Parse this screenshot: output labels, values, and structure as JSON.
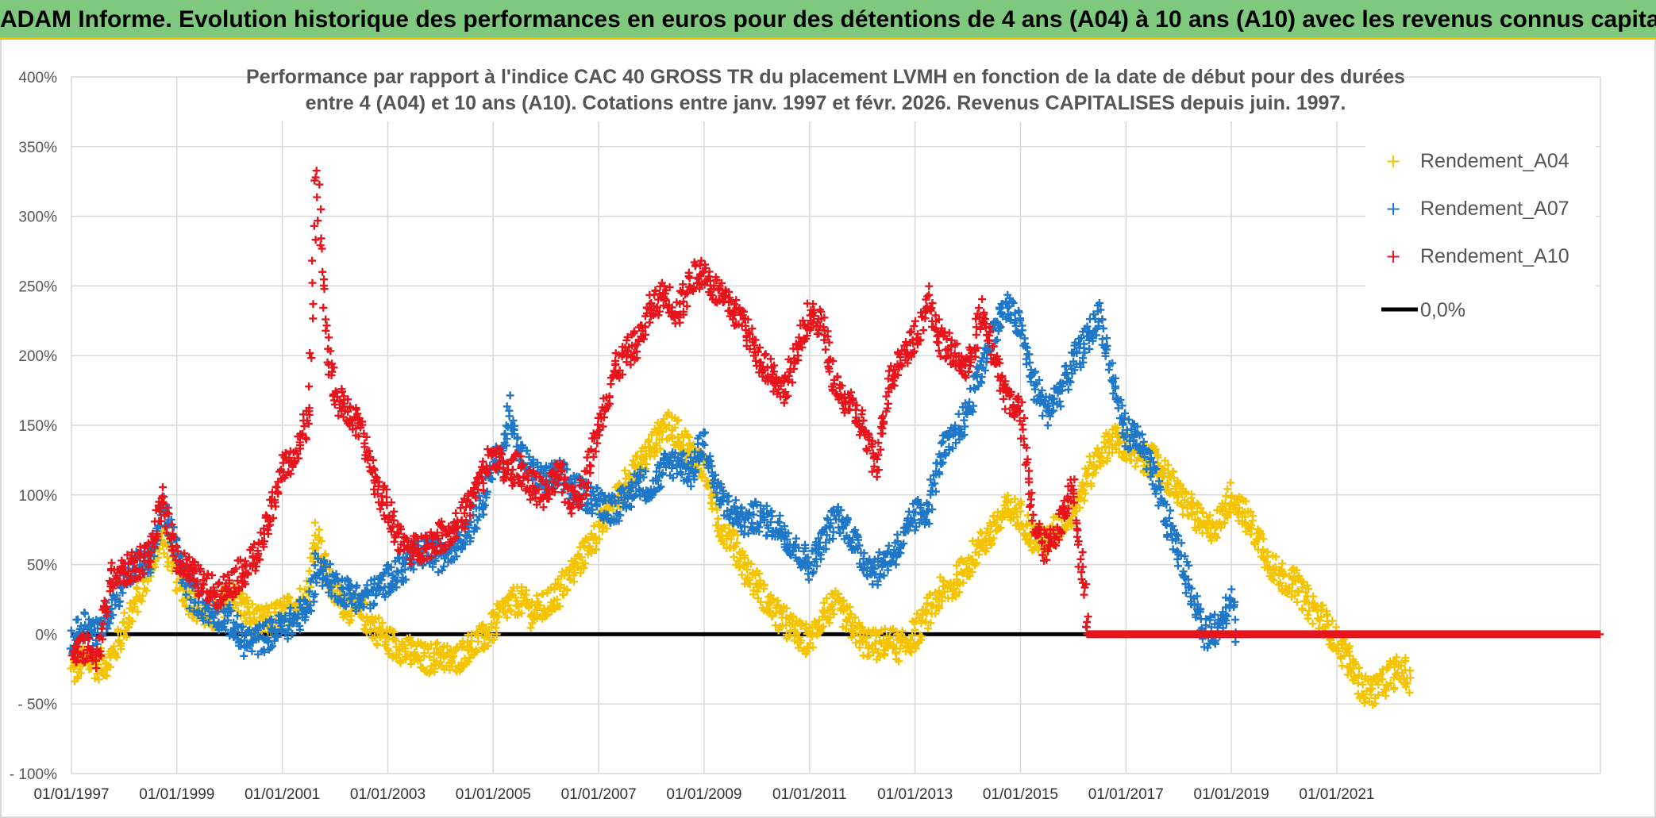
{
  "banner": {
    "title": "ADAM Informe. Evolution historique des performances en euros pour des détentions de 4 ans (A04) à 10 ans (A10) avec les revenus connus capitalisés"
  },
  "colors": {
    "banner_bg": "#7fc97f",
    "banner_border": "#f2c200",
    "a04": "#f5c400",
    "a07": "#1f77c8",
    "a10": "#e8141c",
    "zero": "#000000",
    "grid": "#d9d9d9"
  },
  "chart_data": {
    "type": "scatter",
    "title_line1": "Performance  par rapport à l'indice CAC 40 GROSS TR  du placement LVMH en fonction de la date de début pour des durées",
    "title_line2": "entre 4 (A04) et 10 ans (A10). Cotations entre janv. 1997 et févr. 2026. Revenus CAPITALISES depuis juin. 1997.",
    "xlabel": "",
    "ylabel": "",
    "x_unit": "year",
    "xlim": [
      1997.0,
      2026.0
    ],
    "ylim": [
      -100,
      400
    ],
    "grid": true,
    "legend_position": "top-right",
    "y_ticks": [
      "400%",
      "350%",
      "300%",
      "250%",
      "200%",
      "150%",
      "100%",
      "50%",
      "0%",
      "- 50%",
      "- 100%"
    ],
    "y_tick_values": [
      400,
      350,
      300,
      250,
      200,
      150,
      100,
      50,
      0,
      -50,
      -100
    ],
    "x_ticks": [
      "01/01/1997",
      "01/01/1999",
      "01/01/2001",
      "01/01/2003",
      "01/01/2005",
      "01/01/2007",
      "01/01/2009",
      "01/01/2011",
      "01/01/2013",
      "01/01/2015",
      "01/01/2017",
      "01/01/2019",
      "01/01/2021"
    ],
    "x_tick_values": [
      1997,
      1999,
      2001,
      2003,
      2005,
      2007,
      2009,
      2011,
      2013,
      2015,
      2017,
      2019,
      2021
    ],
    "series": [
      {
        "name": "Rendement_A04",
        "marker": "plus",
        "points": [
          [
            1997.0,
            -28
          ],
          [
            1997.25,
            -18
          ],
          [
            1997.5,
            -22
          ],
          [
            1997.75,
            -18
          ],
          [
            1998.0,
            5
          ],
          [
            1998.25,
            25
          ],
          [
            1998.5,
            50
          ],
          [
            1998.75,
            70
          ],
          [
            1999.0,
            40
          ],
          [
            1999.25,
            25
          ],
          [
            1999.5,
            15
          ],
          [
            1999.75,
            12
          ],
          [
            2000.0,
            30
          ],
          [
            2000.25,
            20
          ],
          [
            2000.5,
            8
          ],
          [
            2000.75,
            10
          ],
          [
            2001.0,
            15
          ],
          [
            2001.25,
            20
          ],
          [
            2001.5,
            30
          ],
          [
            2001.65,
            75
          ],
          [
            2001.8,
            50
          ],
          [
            2002.0,
            30
          ],
          [
            2002.25,
            20
          ],
          [
            2002.5,
            15
          ],
          [
            2002.75,
            5
          ],
          [
            2003.0,
            -5
          ],
          [
            2003.25,
            -10
          ],
          [
            2003.5,
            -15
          ],
          [
            2003.75,
            -18
          ],
          [
            2004.0,
            -15
          ],
          [
            2004.25,
            -20
          ],
          [
            2004.5,
            -10
          ],
          [
            2004.75,
            -5
          ],
          [
            2005.0,
            5
          ],
          [
            2005.25,
            20
          ],
          [
            2005.5,
            25
          ],
          [
            2005.75,
            15
          ],
          [
            2006.0,
            20
          ],
          [
            2006.25,
            30
          ],
          [
            2006.5,
            45
          ],
          [
            2006.75,
            60
          ],
          [
            2007.0,
            75
          ],
          [
            2007.25,
            90
          ],
          [
            2007.5,
            110
          ],
          [
            2007.75,
            120
          ],
          [
            2008.0,
            135
          ],
          [
            2008.25,
            150
          ],
          [
            2008.5,
            145
          ],
          [
            2008.75,
            130
          ],
          [
            2009.0,
            120
          ],
          [
            2009.25,
            80
          ],
          [
            2009.5,
            70
          ],
          [
            2009.75,
            50
          ],
          [
            2010.0,
            35
          ],
          [
            2010.25,
            20
          ],
          [
            2010.5,
            10
          ],
          [
            2010.75,
            0
          ],
          [
            2011.0,
            -5
          ],
          [
            2011.25,
            15
          ],
          [
            2011.5,
            20
          ],
          [
            2011.75,
            10
          ],
          [
            2012.0,
            -5
          ],
          [
            2012.25,
            -8
          ],
          [
            2012.5,
            -5
          ],
          [
            2012.75,
            -10
          ],
          [
            2013.0,
            0
          ],
          [
            2013.25,
            15
          ],
          [
            2013.5,
            30
          ],
          [
            2013.75,
            35
          ],
          [
            2014.0,
            50
          ],
          [
            2014.25,
            65
          ],
          [
            2014.5,
            75
          ],
          [
            2014.75,
            90
          ],
          [
            2015.0,
            85
          ],
          [
            2015.25,
            70
          ],
          [
            2015.5,
            65
          ],
          [
            2015.75,
            80
          ],
          [
            2016.0,
            90
          ],
          [
            2016.25,
            110
          ],
          [
            2016.5,
            130
          ],
          [
            2016.75,
            140
          ],
          [
            2017.0,
            135
          ],
          [
            2017.25,
            125
          ],
          [
            2017.5,
            125
          ],
          [
            2017.75,
            115
          ],
          [
            2018.0,
            100
          ],
          [
            2018.25,
            90
          ],
          [
            2018.5,
            75
          ],
          [
            2018.75,
            80
          ],
          [
            2019.0,
            100
          ],
          [
            2019.25,
            85
          ],
          [
            2019.5,
            70
          ],
          [
            2019.75,
            50
          ],
          [
            2020.0,
            40
          ],
          [
            2020.25,
            35
          ],
          [
            2020.5,
            20
          ],
          [
            2020.75,
            10
          ],
          [
            2021.0,
            -5
          ],
          [
            2021.25,
            -20
          ],
          [
            2021.5,
            -40
          ],
          [
            2021.75,
            -40
          ],
          [
            2022.0,
            -30
          ],
          [
            2022.25,
            -25
          ],
          [
            2022.4,
            -38
          ]
        ]
      },
      {
        "name": "Rendement_A07",
        "marker": "plus",
        "points": [
          [
            1997.0,
            -5
          ],
          [
            1997.25,
            8
          ],
          [
            1997.5,
            0
          ],
          [
            1997.75,
            20
          ],
          [
            1998.0,
            40
          ],
          [
            1998.25,
            50
          ],
          [
            1998.5,
            55
          ],
          [
            1998.75,
            90
          ],
          [
            1999.0,
            60
          ],
          [
            1999.25,
            30
          ],
          [
            1999.5,
            20
          ],
          [
            1999.75,
            15
          ],
          [
            2000.0,
            10
          ],
          [
            2000.25,
            -5
          ],
          [
            2000.5,
            -5
          ],
          [
            2000.75,
            0
          ],
          [
            2001.0,
            5
          ],
          [
            2001.25,
            10
          ],
          [
            2001.5,
            20
          ],
          [
            2001.65,
            50
          ],
          [
            2002.0,
            35
          ],
          [
            2002.25,
            30
          ],
          [
            2002.5,
            25
          ],
          [
            2002.75,
            30
          ],
          [
            2003.0,
            40
          ],
          [
            2003.25,
            45
          ],
          [
            2003.5,
            55
          ],
          [
            2003.75,
            60
          ],
          [
            2004.0,
            55
          ],
          [
            2004.25,
            65
          ],
          [
            2004.5,
            75
          ],
          [
            2004.75,
            90
          ],
          [
            2005.0,
            120
          ],
          [
            2005.25,
            140
          ],
          [
            2005.3,
            165
          ],
          [
            2005.5,
            130
          ],
          [
            2005.75,
            115
          ],
          [
            2006.0,
            110
          ],
          [
            2006.25,
            115
          ],
          [
            2006.5,
            105
          ],
          [
            2006.75,
            100
          ],
          [
            2007.0,
            95
          ],
          [
            2007.25,
            90
          ],
          [
            2007.5,
            95
          ],
          [
            2007.75,
            110
          ],
          [
            2008.0,
            105
          ],
          [
            2008.25,
            120
          ],
          [
            2008.5,
            125
          ],
          [
            2008.75,
            115
          ],
          [
            2009.0,
            140
          ],
          [
            2009.25,
            100
          ],
          [
            2009.5,
            90
          ],
          [
            2009.75,
            80
          ],
          [
            2010.0,
            85
          ],
          [
            2010.25,
            80
          ],
          [
            2010.5,
            75
          ],
          [
            2010.75,
            60
          ],
          [
            2011.0,
            50
          ],
          [
            2011.25,
            65
          ],
          [
            2011.5,
            85
          ],
          [
            2011.75,
            75
          ],
          [
            2012.0,
            55
          ],
          [
            2012.25,
            45
          ],
          [
            2012.5,
            55
          ],
          [
            2012.75,
            65
          ],
          [
            2013.0,
            85
          ],
          [
            2013.25,
            90
          ],
          [
            2013.5,
            130
          ],
          [
            2013.75,
            140
          ],
          [
            2014.0,
            160
          ],
          [
            2014.25,
            190
          ],
          [
            2014.5,
            220
          ],
          [
            2014.75,
            235
          ],
          [
            2015.0,
            220
          ],
          [
            2015.25,
            180
          ],
          [
            2015.5,
            160
          ],
          [
            2015.75,
            175
          ],
          [
            2016.0,
            195
          ],
          [
            2016.25,
            210
          ],
          [
            2016.5,
            230
          ],
          [
            2016.75,
            180
          ],
          [
            2017.0,
            145
          ],
          [
            2017.25,
            140
          ],
          [
            2017.5,
            115
          ],
          [
            2017.75,
            85
          ],
          [
            2018.0,
            60
          ],
          [
            2018.25,
            30
          ],
          [
            2018.5,
            0
          ],
          [
            2018.75,
            5
          ],
          [
            2019.0,
            30
          ],
          [
            2019.1,
            0
          ]
        ]
      },
      {
        "name": "Rendement_A10",
        "marker": "plus",
        "points": [
          [
            1997.0,
            -15
          ],
          [
            1997.25,
            -10
          ],
          [
            1997.5,
            -15
          ],
          [
            1997.75,
            40
          ],
          [
            1998.0,
            45
          ],
          [
            1998.25,
            50
          ],
          [
            1998.5,
            60
          ],
          [
            1998.75,
            95
          ],
          [
            1999.0,
            55
          ],
          [
            1999.25,
            45
          ],
          [
            1999.5,
            35
          ],
          [
            1999.75,
            30
          ],
          [
            2000.0,
            35
          ],
          [
            2000.25,
            45
          ],
          [
            2000.5,
            55
          ],
          [
            2000.75,
            80
          ],
          [
            2001.0,
            120
          ],
          [
            2001.25,
            125
          ],
          [
            2001.5,
            160
          ],
          [
            2001.65,
            330
          ],
          [
            2001.75,
            270
          ],
          [
            2001.85,
            210
          ],
          [
            2002.0,
            170
          ],
          [
            2002.25,
            160
          ],
          [
            2002.5,
            145
          ],
          [
            2002.75,
            110
          ],
          [
            2003.0,
            90
          ],
          [
            2003.25,
            65
          ],
          [
            2003.5,
            60
          ],
          [
            2003.75,
            65
          ],
          [
            2004.0,
            70
          ],
          [
            2004.25,
            75
          ],
          [
            2004.5,
            90
          ],
          [
            2004.75,
            110
          ],
          [
            2005.0,
            130
          ],
          [
            2005.25,
            115
          ],
          [
            2005.5,
            120
          ],
          [
            2005.75,
            105
          ],
          [
            2006.0,
            100
          ],
          [
            2006.25,
            115
          ],
          [
            2006.5,
            95
          ],
          [
            2006.75,
            110
          ],
          [
            2007.0,
            150
          ],
          [
            2007.25,
            185
          ],
          [
            2007.5,
            200
          ],
          [
            2007.75,
            210
          ],
          [
            2008.0,
            235
          ],
          [
            2008.25,
            245
          ],
          [
            2008.5,
            230
          ],
          [
            2008.75,
            255
          ],
          [
            2009.0,
            260
          ],
          [
            2009.25,
            245
          ],
          [
            2009.5,
            235
          ],
          [
            2009.75,
            225
          ],
          [
            2010.0,
            200
          ],
          [
            2010.25,
            190
          ],
          [
            2010.5,
            175
          ],
          [
            2010.75,
            200
          ],
          [
            2011.0,
            230
          ],
          [
            2011.25,
            220
          ],
          [
            2011.5,
            175
          ],
          [
            2011.75,
            165
          ],
          [
            2012.0,
            150
          ],
          [
            2012.25,
            120
          ],
          [
            2012.5,
            180
          ],
          [
            2012.75,
            200
          ],
          [
            2013.0,
            210
          ],
          [
            2013.25,
            240
          ],
          [
            2013.5,
            210
          ],
          [
            2013.75,
            200
          ],
          [
            2014.0,
            190
          ],
          [
            2014.25,
            230
          ],
          [
            2014.5,
            200
          ],
          [
            2014.75,
            170
          ],
          [
            2015.0,
            160
          ],
          [
            2015.25,
            80
          ],
          [
            2015.5,
            60
          ],
          [
            2015.75,
            80
          ],
          [
            2016.0,
            110
          ],
          [
            2016.15,
            50
          ],
          [
            2016.3,
            0
          ],
          [
            2018.0,
            0
          ],
          [
            2020.0,
            0
          ],
          [
            2022.0,
            0
          ],
          [
            2024.0,
            0
          ],
          [
            2026.0,
            0
          ]
        ]
      }
    ],
    "zero_line": {
      "name": "0,0%",
      "y": 0
    }
  },
  "legend": {
    "a04": "Rendement_A04",
    "a07": "Rendement_A07",
    "a10": "Rendement_A10",
    "zero": "0,0%"
  }
}
